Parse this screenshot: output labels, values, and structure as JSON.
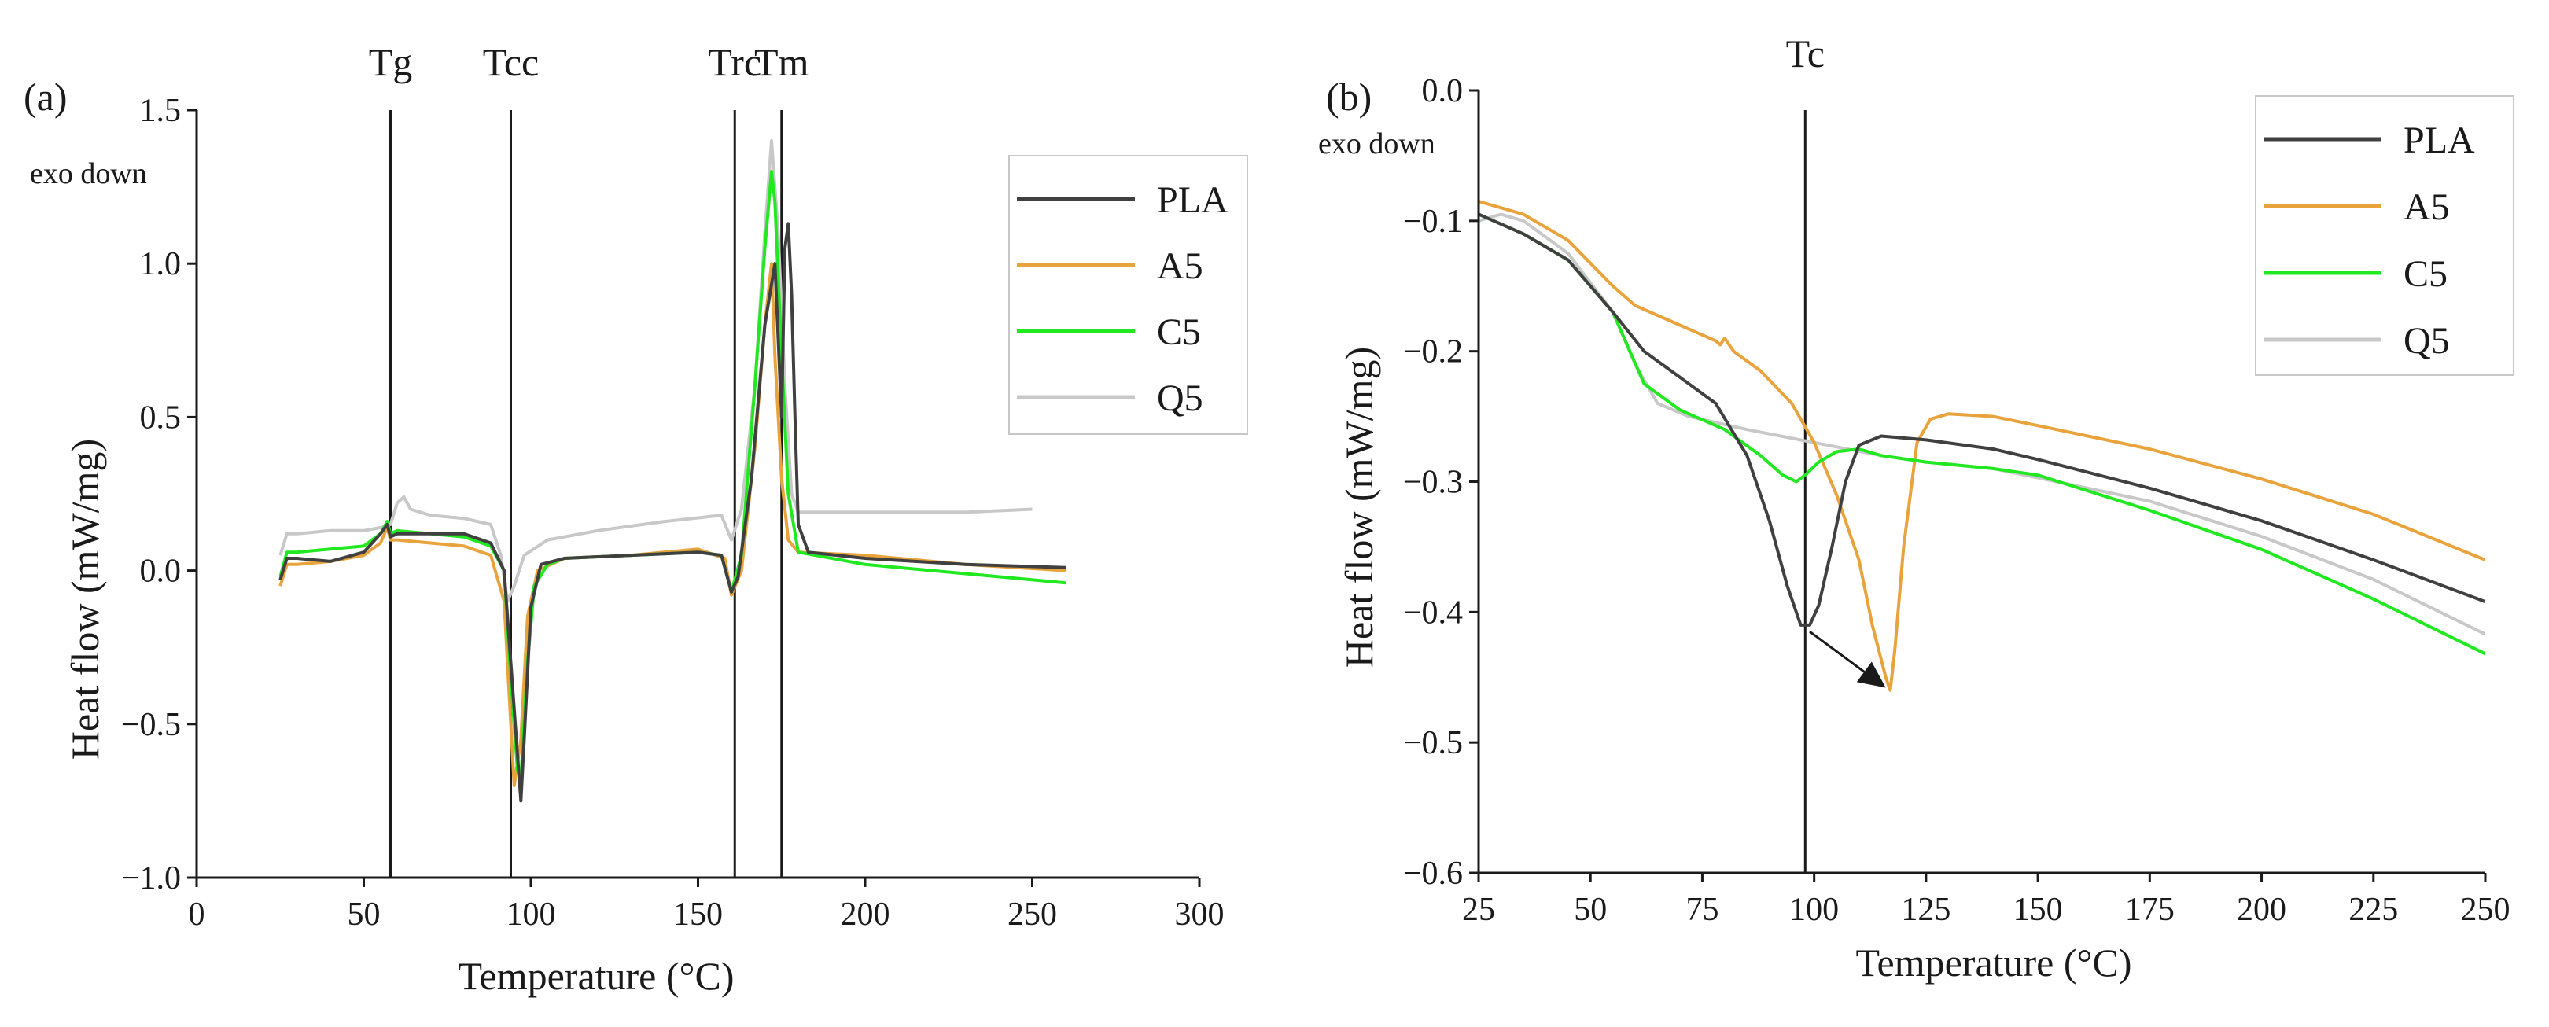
{
  "chart_data": [
    {
      "id": "a",
      "panel_label": "(a)",
      "type": "line",
      "xlabel": "Temperature (°C)",
      "ylabel": "Heat flow (mW/mg)",
      "annotation": "exo down",
      "xlim": [
        0,
        300
      ],
      "ylim": [
        -1.0,
        1.5
      ],
      "xticks": [
        0,
        50,
        100,
        150,
        200,
        250,
        300
      ],
      "yticks": [
        -1.0,
        -0.5,
        0.0,
        0.5,
        1.0,
        1.5
      ],
      "xtick_labels": [
        "0",
        "50",
        "100",
        "150",
        "200",
        "250",
        "300"
      ],
      "ytick_labels": [
        "−1.0",
        "−0.5",
        "0.0",
        "0.5",
        "1.0",
        "1.5"
      ],
      "vlines": [
        {
          "label": "Tg",
          "x": 58
        },
        {
          "label": "Tcc",
          "x": 94
        },
        {
          "label": "Trc",
          "x": 161
        },
        {
          "label": "Tm",
          "x": 175
        }
      ],
      "legend_position": "top-right",
      "series": [
        {
          "name": "PLA",
          "color": "#404040",
          "points": [
            [
              25,
              -0.03
            ],
            [
              27,
              0.04
            ],
            [
              30,
              0.04
            ],
            [
              40,
              0.03
            ],
            [
              50,
              0.06
            ],
            [
              55,
              0.12
            ],
            [
              57,
              0.15
            ],
            [
              58,
              0.11
            ],
            [
              60,
              0.12
            ],
            [
              70,
              0.12
            ],
            [
              80,
              0.12
            ],
            [
              88,
              0.09
            ],
            [
              92,
              0.0
            ],
            [
              94,
              -0.3
            ],
            [
              96,
              -0.6
            ],
            [
              97,
              -0.75
            ],
            [
              98,
              -0.55
            ],
            [
              100,
              -0.12
            ],
            [
              103,
              0.02
            ],
            [
              110,
              0.04
            ],
            [
              130,
              0.05
            ],
            [
              150,
              0.06
            ],
            [
              157,
              0.05
            ],
            [
              160,
              -0.07
            ],
            [
              162,
              -0.02
            ],
            [
              166,
              0.3
            ],
            [
              170,
              0.8
            ],
            [
              173,
              1.0
            ],
            [
              175,
              0.5
            ],
            [
              176,
              1.05
            ],
            [
              177,
              1.13
            ],
            [
              178,
              0.9
            ],
            [
              179,
              0.5
            ],
            [
              180,
              0.15
            ],
            [
              183,
              0.06
            ],
            [
              200,
              0.04
            ],
            [
              230,
              0.02
            ],
            [
              260,
              0.01
            ]
          ]
        },
        {
          "name": "A5",
          "color": "#e8a33c",
          "points": [
            [
              25,
              -0.05
            ],
            [
              27,
              0.02
            ],
            [
              30,
              0.02
            ],
            [
              40,
              0.03
            ],
            [
              50,
              0.05
            ],
            [
              55,
              0.09
            ],
            [
              57,
              0.14
            ],
            [
              58,
              0.1
            ],
            [
              60,
              0.1
            ],
            [
              70,
              0.09
            ],
            [
              80,
              0.08
            ],
            [
              88,
              0.05
            ],
            [
              92,
              -0.1
            ],
            [
              94,
              -0.5
            ],
            [
              95,
              -0.7
            ],
            [
              97,
              -0.55
            ],
            [
              99,
              -0.15
            ],
            [
              102,
              0.0
            ],
            [
              110,
              0.04
            ],
            [
              130,
              0.05
            ],
            [
              150,
              0.07
            ],
            [
              158,
              0.04
            ],
            [
              160,
              -0.08
            ],
            [
              163,
              0.0
            ],
            [
              167,
              0.4
            ],
            [
              170,
              0.8
            ],
            [
              172,
              1.0
            ],
            [
              173,
              0.7
            ],
            [
              175,
              0.3
            ],
            [
              177,
              0.1
            ],
            [
              180,
              0.06
            ],
            [
              200,
              0.05
            ],
            [
              230,
              0.02
            ],
            [
              260,
              0.0
            ]
          ]
        },
        {
          "name": "C5",
          "color": "#22e822",
          "points": [
            [
              25,
              -0.02
            ],
            [
              27,
              0.06
            ],
            [
              30,
              0.06
            ],
            [
              40,
              0.07
            ],
            [
              50,
              0.08
            ],
            [
              55,
              0.12
            ],
            [
              57,
              0.16
            ],
            [
              58,
              0.12
            ],
            [
              60,
              0.13
            ],
            [
              70,
              0.12
            ],
            [
              80,
              0.11
            ],
            [
              88,
              0.08
            ],
            [
              92,
              0.0
            ],
            [
              94,
              -0.35
            ],
            [
              96,
              -0.65
            ],
            [
              97,
              -0.68
            ],
            [
              99,
              -0.3
            ],
            [
              101,
              -0.05
            ],
            [
              105,
              0.02
            ],
            [
              110,
              0.04
            ],
            [
              130,
              0.05
            ],
            [
              150,
              0.06
            ],
            [
              157,
              0.05
            ],
            [
              160,
              -0.07
            ],
            [
              163,
              0.05
            ],
            [
              167,
              0.6
            ],
            [
              170,
              1.05
            ],
            [
              172,
              1.3
            ],
            [
              173,
              1.2
            ],
            [
              175,
              0.7
            ],
            [
              177,
              0.25
            ],
            [
              180,
              0.06
            ],
            [
              200,
              0.02
            ],
            [
              230,
              -0.01
            ],
            [
              260,
              -0.04
            ]
          ]
        },
        {
          "name": "Q5",
          "color": "#c8c8c8",
          "points": [
            [
              25,
              0.05
            ],
            [
              27,
              0.12
            ],
            [
              30,
              0.12
            ],
            [
              40,
              0.13
            ],
            [
              50,
              0.13
            ],
            [
              55,
              0.14
            ],
            [
              58,
              0.15
            ],
            [
              60,
              0.22
            ],
            [
              62,
              0.24
            ],
            [
              64,
              0.2
            ],
            [
              70,
              0.18
            ],
            [
              80,
              0.17
            ],
            [
              88,
              0.15
            ],
            [
              91,
              0.05
            ],
            [
              93,
              -0.1
            ],
            [
              95,
              -0.05
            ],
            [
              98,
              0.05
            ],
            [
              105,
              0.1
            ],
            [
              120,
              0.13
            ],
            [
              140,
              0.16
            ],
            [
              157,
              0.18
            ],
            [
              160,
              0.1
            ],
            [
              163,
              0.2
            ],
            [
              167,
              0.6
            ],
            [
              170,
              1.1
            ],
            [
              172,
              1.4
            ],
            [
              174,
              1.1
            ],
            [
              176,
              0.6
            ],
            [
              178,
              0.25
            ],
            [
              180,
              0.19
            ],
            [
              200,
              0.19
            ],
            [
              230,
              0.19
            ],
            [
              250,
              0.2
            ]
          ]
        }
      ]
    },
    {
      "id": "b",
      "panel_label": "(b)",
      "type": "line",
      "xlabel": "Temperature (°C)",
      "ylabel": "Heat flow (mW/mg)",
      "annotation": "exo down",
      "xlim": [
        25,
        250
      ],
      "ylim": [
        -0.6,
        0.0
      ],
      "xticks": [
        25,
        50,
        75,
        100,
        125,
        150,
        175,
        200,
        225,
        250
      ],
      "yticks": [
        -0.6,
        -0.5,
        -0.4,
        -0.3,
        -0.2,
        -0.1,
        0.0
      ],
      "xtick_labels": [
        "25",
        "50",
        "75",
        "100",
        "125",
        "150",
        "175",
        "200",
        "225",
        "250"
      ],
      "ytick_labels": [
        "−0.6",
        "−0.5",
        "−0.4",
        "−0.3",
        "−0.2",
        "−0.1",
        "0.0"
      ],
      "vlines": [
        {
          "label": "Tc",
          "x": 98
        }
      ],
      "arrow": {
        "from": [
          99,
          -0.415
        ],
        "to": [
          116,
          -0.458
        ]
      },
      "legend_position": "top-right",
      "series": [
        {
          "name": "PLA",
          "color": "#404040",
          "points": [
            [
              25,
              -0.095
            ],
            [
              35,
              -0.11
            ],
            [
              45,
              -0.13
            ],
            [
              55,
              -0.17
            ],
            [
              62,
              -0.2
            ],
            [
              70,
              -0.22
            ],
            [
              78,
              -0.24
            ],
            [
              85,
              -0.28
            ],
            [
              90,
              -0.33
            ],
            [
              94,
              -0.38
            ],
            [
              97,
              -0.41
            ],
            [
              99,
              -0.41
            ],
            [
              101,
              -0.395
            ],
            [
              104,
              -0.35
            ],
            [
              107,
              -0.3
            ],
            [
              110,
              -0.272
            ],
            [
              115,
              -0.265
            ],
            [
              125,
              -0.268
            ],
            [
              140,
              -0.275
            ],
            [
              150,
              -0.283
            ],
            [
              175,
              -0.305
            ],
            [
              200,
              -0.33
            ],
            [
              225,
              -0.36
            ],
            [
              250,
              -0.392
            ]
          ]
        },
        {
          "name": "A5",
          "color": "#e8a33c",
          "points": [
            [
              25,
              -0.085
            ],
            [
              35,
              -0.095
            ],
            [
              45,
              -0.115
            ],
            [
              55,
              -0.15
            ],
            [
              60,
              -0.165
            ],
            [
              70,
              -0.18
            ],
            [
              78,
              -0.192
            ],
            [
              79,
              -0.195
            ],
            [
              80,
              -0.19
            ],
            [
              82,
              -0.2
            ],
            [
              88,
              -0.215
            ],
            [
              95,
              -0.24
            ],
            [
              100,
              -0.27
            ],
            [
              105,
              -0.31
            ],
            [
              110,
              -0.36
            ],
            [
              113,
              -0.41
            ],
            [
              116,
              -0.45
            ],
            [
              117,
              -0.46
            ],
            [
              118,
              -0.43
            ],
            [
              120,
              -0.35
            ],
            [
              123,
              -0.27
            ],
            [
              126,
              -0.252
            ],
            [
              130,
              -0.248
            ],
            [
              140,
              -0.25
            ],
            [
              150,
              -0.257
            ],
            [
              175,
              -0.275
            ],
            [
              200,
              -0.298
            ],
            [
              225,
              -0.325
            ],
            [
              250,
              -0.36
            ]
          ]
        },
        {
          "name": "C5",
          "color": "#22e822",
          "points": [
            [
              25,
              -0.095
            ],
            [
              35,
              -0.11
            ],
            [
              45,
              -0.13
            ],
            [
              55,
              -0.17
            ],
            [
              62,
              -0.225
            ],
            [
              70,
              -0.245
            ],
            [
              80,
              -0.26
            ],
            [
              88,
              -0.28
            ],
            [
              93,
              -0.295
            ],
            [
              96,
              -0.3
            ],
            [
              98,
              -0.295
            ],
            [
              101,
              -0.285
            ],
            [
              105,
              -0.277
            ],
            [
              110,
              -0.275
            ],
            [
              115,
              -0.28
            ],
            [
              125,
              -0.285
            ],
            [
              140,
              -0.29
            ],
            [
              150,
              -0.295
            ],
            [
              175,
              -0.322
            ],
            [
              200,
              -0.352
            ],
            [
              225,
              -0.39
            ],
            [
              250,
              -0.432
            ]
          ]
        },
        {
          "name": "Q5",
          "color": "#c8c8c8",
          "points": [
            [
              25,
              -0.1
            ],
            [
              30,
              -0.095
            ],
            [
              35,
              -0.1
            ],
            [
              45,
              -0.125
            ],
            [
              55,
              -0.17
            ],
            [
              60,
              -0.21
            ],
            [
              65,
              -0.24
            ],
            [
              72,
              -0.25
            ],
            [
              85,
              -0.26
            ],
            [
              100,
              -0.27
            ],
            [
              115,
              -0.28
            ],
            [
              125,
              -0.285
            ],
            [
              140,
              -0.29
            ],
            [
              150,
              -0.297
            ],
            [
              175,
              -0.315
            ],
            [
              200,
              -0.342
            ],
            [
              225,
              -0.375
            ],
            [
              250,
              -0.417
            ]
          ]
        }
      ]
    }
  ]
}
